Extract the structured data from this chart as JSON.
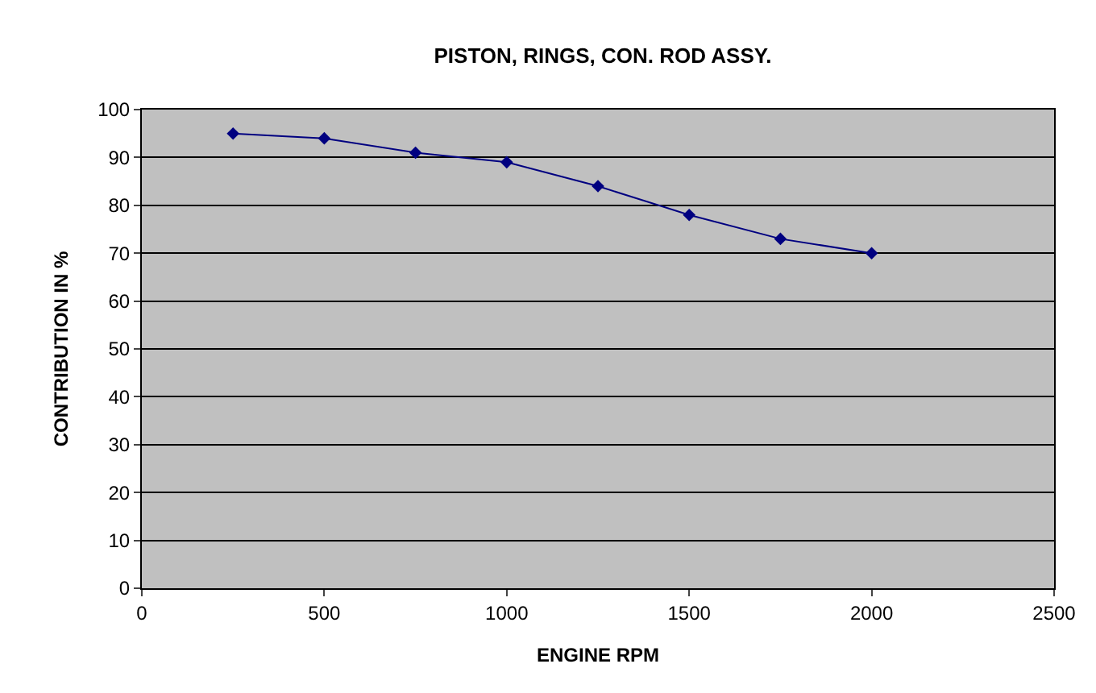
{
  "chart_data": {
    "type": "line",
    "title": "PISTON, RINGS, CON. ROD ASSY.",
    "xlabel": "ENGINE RPM",
    "ylabel": "CONTRIBUTION IN %",
    "x": [
      250,
      500,
      750,
      1000,
      1250,
      1500,
      1750,
      2000
    ],
    "series": [
      {
        "color": "#000080",
        "values": [
          95,
          94,
          91,
          89,
          84,
          78,
          73,
          70
        ]
      }
    ],
    "xlim": [
      0,
      2500
    ],
    "xticks": [
      0,
      500,
      1000,
      1500,
      2000,
      2500
    ],
    "ylim": [
      0,
      100
    ],
    "yticks": [
      0,
      10,
      20,
      30,
      40,
      50,
      60,
      70,
      80,
      90,
      100
    ],
    "grid": "y",
    "legend": false,
    "marker": "diamond",
    "line_style": "solid"
  }
}
